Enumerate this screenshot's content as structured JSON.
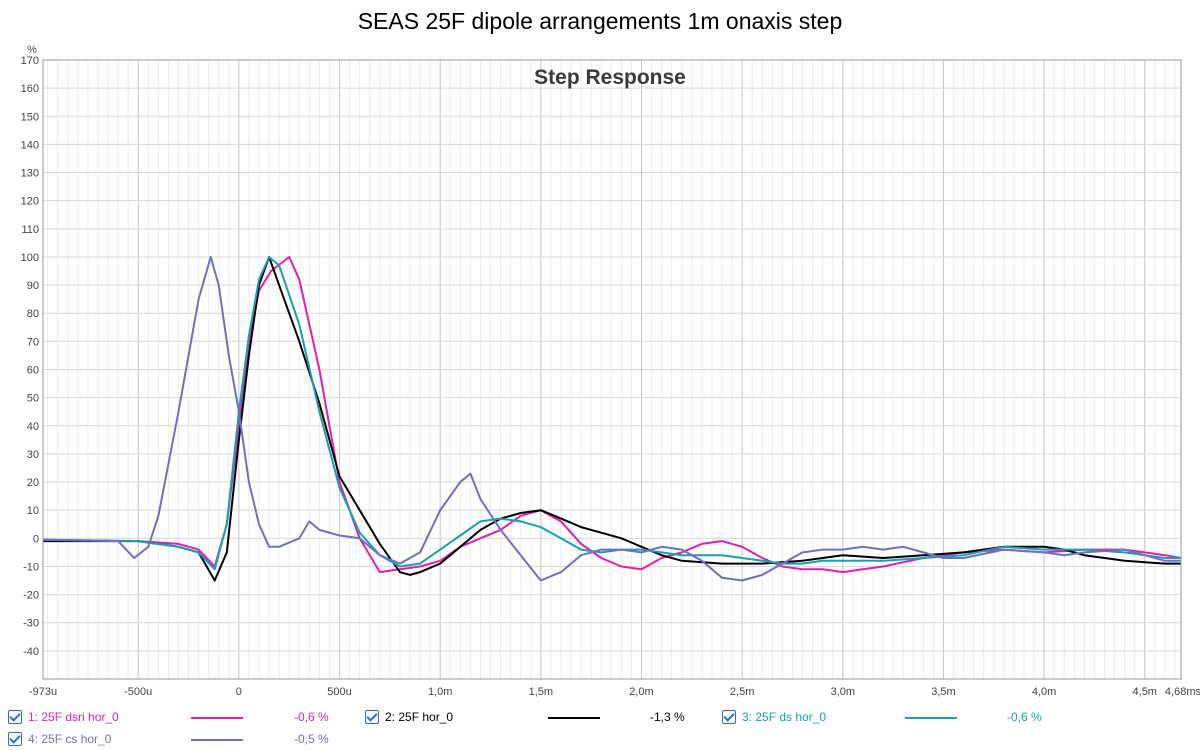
{
  "window_title": "SEAS 25F dipole arrangements 1m onaxis step",
  "chart_data": {
    "type": "line",
    "title": "Step Response",
    "ylabel": "%",
    "xlabel": "",
    "xlim": [
      -0.973,
      4.68
    ],
    "ylim": [
      -50,
      170
    ],
    "y_ticks": [
      170,
      160,
      150,
      140,
      130,
      120,
      110,
      100,
      90,
      80,
      70,
      60,
      50,
      40,
      30,
      20,
      10,
      0,
      -10,
      -20,
      -30,
      -40
    ],
    "x_ticks": [
      {
        "v": -0.973,
        "label": "-973u"
      },
      {
        "v": -0.5,
        "label": "-500u"
      },
      {
        "v": 0,
        "label": "0"
      },
      {
        "v": 0.5,
        "label": "500u"
      },
      {
        "v": 1.0,
        "label": "1,0m"
      },
      {
        "v": 1.5,
        "label": "1,5m"
      },
      {
        "v": 2.0,
        "label": "2,0m"
      },
      {
        "v": 2.5,
        "label": "2,5m"
      },
      {
        "v": 3.0,
        "label": "3,0m"
      },
      {
        "v": 3.5,
        "label": "3,5m"
      },
      {
        "v": 4.0,
        "label": "4,0m"
      },
      {
        "v": 4.5,
        "label": "4,5m"
      },
      {
        "v": 4.68,
        "label": "4,68ms"
      }
    ],
    "grid": true,
    "series": [
      {
        "id": "s1",
        "name": "1: 25F dsri hor_0",
        "value_label": "-0,6 %",
        "color": "#e020b0",
        "points": [
          [
            -0.973,
            -0.5
          ],
          [
            -0.5,
            -1
          ],
          [
            -0.3,
            -2
          ],
          [
            -0.2,
            -4
          ],
          [
            -0.12,
            -10
          ],
          [
            -0.06,
            5
          ],
          [
            0,
            40
          ],
          [
            0.05,
            70
          ],
          [
            0.1,
            88
          ],
          [
            0.16,
            95
          ],
          [
            0.25,
            100
          ],
          [
            0.3,
            92
          ],
          [
            0.4,
            60
          ],
          [
            0.5,
            20
          ],
          [
            0.6,
            0
          ],
          [
            0.7,
            -12
          ],
          [
            0.8,
            -11
          ],
          [
            0.9,
            -10
          ],
          [
            1.0,
            -8
          ],
          [
            1.1,
            -3
          ],
          [
            1.2,
            0
          ],
          [
            1.3,
            3
          ],
          [
            1.4,
            8
          ],
          [
            1.5,
            10
          ],
          [
            1.6,
            6
          ],
          [
            1.7,
            -2
          ],
          [
            1.8,
            -7
          ],
          [
            1.9,
            -10
          ],
          [
            2.0,
            -11
          ],
          [
            2.1,
            -7
          ],
          [
            2.2,
            -5
          ],
          [
            2.3,
            -2
          ],
          [
            2.4,
            -1
          ],
          [
            2.5,
            -3
          ],
          [
            2.6,
            -7
          ],
          [
            2.7,
            -10
          ],
          [
            2.8,
            -11
          ],
          [
            2.9,
            -11
          ],
          [
            3.0,
            -12
          ],
          [
            3.1,
            -11
          ],
          [
            3.2,
            -10
          ],
          [
            3.4,
            -7
          ],
          [
            3.6,
            -5
          ],
          [
            3.8,
            -4
          ],
          [
            4.0,
            -5
          ],
          [
            4.2,
            -4
          ],
          [
            4.4,
            -4
          ],
          [
            4.6,
            -6
          ],
          [
            4.68,
            -7
          ]
        ]
      },
      {
        "id": "s2",
        "name": "2: 25F hor_0",
        "value_label": "-1,3 %",
        "color": "#000000",
        "points": [
          [
            -0.973,
            -1
          ],
          [
            -0.5,
            -1
          ],
          [
            -0.3,
            -3
          ],
          [
            -0.2,
            -5
          ],
          [
            -0.12,
            -15
          ],
          [
            -0.06,
            -5
          ],
          [
            0,
            35
          ],
          [
            0.05,
            65
          ],
          [
            0.1,
            90
          ],
          [
            0.15,
            100
          ],
          [
            0.2,
            90
          ],
          [
            0.3,
            70
          ],
          [
            0.4,
            48
          ],
          [
            0.5,
            22
          ],
          [
            0.6,
            10
          ],
          [
            0.7,
            -2
          ],
          [
            0.8,
            -12
          ],
          [
            0.85,
            -13
          ],
          [
            0.9,
            -12
          ],
          [
            1.0,
            -9
          ],
          [
            1.1,
            -3
          ],
          [
            1.2,
            3
          ],
          [
            1.3,
            7
          ],
          [
            1.4,
            9
          ],
          [
            1.5,
            10
          ],
          [
            1.6,
            7
          ],
          [
            1.7,
            4
          ],
          [
            1.8,
            2
          ],
          [
            1.9,
            0
          ],
          [
            2.0,
            -3
          ],
          [
            2.1,
            -6
          ],
          [
            2.2,
            -8
          ],
          [
            2.4,
            -9
          ],
          [
            2.6,
            -9
          ],
          [
            2.8,
            -8
          ],
          [
            3.0,
            -6
          ],
          [
            3.2,
            -7
          ],
          [
            3.4,
            -6
          ],
          [
            3.6,
            -5
          ],
          [
            3.8,
            -3
          ],
          [
            4.0,
            -3
          ],
          [
            4.1,
            -4
          ],
          [
            4.2,
            -6
          ],
          [
            4.4,
            -8
          ],
          [
            4.6,
            -9
          ],
          [
            4.68,
            -9
          ]
        ]
      },
      {
        "id": "s3",
        "name": "3: 25F ds hor_0",
        "value_label": "-0,6 %",
        "color": "#18a0b0",
        "points": [
          [
            -0.973,
            -0.5
          ],
          [
            -0.5,
            -1
          ],
          [
            -0.3,
            -3
          ],
          [
            -0.2,
            -5
          ],
          [
            -0.12,
            -11
          ],
          [
            -0.06,
            5
          ],
          [
            0,
            45
          ],
          [
            0.05,
            72
          ],
          [
            0.1,
            92
          ],
          [
            0.15,
            100
          ],
          [
            0.2,
            97
          ],
          [
            0.3,
            76
          ],
          [
            0.4,
            45
          ],
          [
            0.5,
            18
          ],
          [
            0.6,
            2
          ],
          [
            0.7,
            -6
          ],
          [
            0.8,
            -10
          ],
          [
            0.9,
            -9
          ],
          [
            1.0,
            -4
          ],
          [
            1.1,
            1
          ],
          [
            1.2,
            6
          ],
          [
            1.3,
            7
          ],
          [
            1.4,
            6
          ],
          [
            1.5,
            4
          ],
          [
            1.6,
            0
          ],
          [
            1.7,
            -4
          ],
          [
            1.8,
            -5
          ],
          [
            1.9,
            -4
          ],
          [
            2.0,
            -4
          ],
          [
            2.1,
            -5
          ],
          [
            2.2,
            -6
          ],
          [
            2.3,
            -6
          ],
          [
            2.4,
            -6
          ],
          [
            2.5,
            -7
          ],
          [
            2.6,
            -8
          ],
          [
            2.7,
            -9
          ],
          [
            2.8,
            -9
          ],
          [
            2.9,
            -8
          ],
          [
            3.0,
            -8
          ],
          [
            3.2,
            -8
          ],
          [
            3.4,
            -7
          ],
          [
            3.6,
            -6
          ],
          [
            3.8,
            -3
          ],
          [
            4.0,
            -4
          ],
          [
            4.2,
            -4
          ],
          [
            4.4,
            -5
          ],
          [
            4.6,
            -7
          ],
          [
            4.68,
            -7
          ]
        ]
      },
      {
        "id": "s4",
        "name": "4: 25F cs hor_0",
        "value_label": "-0,5 %",
        "color": "#7070c0",
        "points": [
          [
            -0.973,
            -0.5
          ],
          [
            -0.6,
            -1
          ],
          [
            -0.52,
            -7
          ],
          [
            -0.45,
            -3
          ],
          [
            -0.4,
            8
          ],
          [
            -0.3,
            45
          ],
          [
            -0.2,
            85
          ],
          [
            -0.14,
            100
          ],
          [
            -0.1,
            90
          ],
          [
            -0.05,
            65
          ],
          [
            0,
            45
          ],
          [
            0.05,
            20
          ],
          [
            0.1,
            5
          ],
          [
            0.15,
            -3
          ],
          [
            0.2,
            -3
          ],
          [
            0.3,
            0
          ],
          [
            0.35,
            6
          ],
          [
            0.4,
            3
          ],
          [
            0.5,
            1
          ],
          [
            0.6,
            0
          ],
          [
            0.7,
            -6
          ],
          [
            0.8,
            -9
          ],
          [
            0.9,
            -5
          ],
          [
            1.0,
            10
          ],
          [
            1.1,
            20
          ],
          [
            1.15,
            23
          ],
          [
            1.2,
            14
          ],
          [
            1.3,
            3
          ],
          [
            1.4,
            -6
          ],
          [
            1.5,
            -15
          ],
          [
            1.6,
            -12
          ],
          [
            1.7,
            -6
          ],
          [
            1.8,
            -4
          ],
          [
            1.9,
            -4
          ],
          [
            2.0,
            -5
          ],
          [
            2.1,
            -3
          ],
          [
            2.2,
            -4
          ],
          [
            2.3,
            -8
          ],
          [
            2.4,
            -14
          ],
          [
            2.5,
            -15
          ],
          [
            2.6,
            -13
          ],
          [
            2.7,
            -9
          ],
          [
            2.8,
            -5
          ],
          [
            2.9,
            -4
          ],
          [
            3.0,
            -4
          ],
          [
            3.1,
            -3
          ],
          [
            3.2,
            -4
          ],
          [
            3.3,
            -3
          ],
          [
            3.4,
            -5
          ],
          [
            3.5,
            -7
          ],
          [
            3.6,
            -7
          ],
          [
            3.8,
            -4
          ],
          [
            4.0,
            -5
          ],
          [
            4.1,
            -6
          ],
          [
            4.2,
            -5
          ],
          [
            4.4,
            -4
          ],
          [
            4.5,
            -6
          ],
          [
            4.6,
            -8
          ],
          [
            4.68,
            -8
          ]
        ]
      }
    ]
  },
  "colors": {
    "grid": "#d9d9d9",
    "axis": "#9a9a9a",
    "tick_text": "#444444",
    "title_text": "#3a3a3a",
    "checkbox": "#2a6bd6"
  }
}
